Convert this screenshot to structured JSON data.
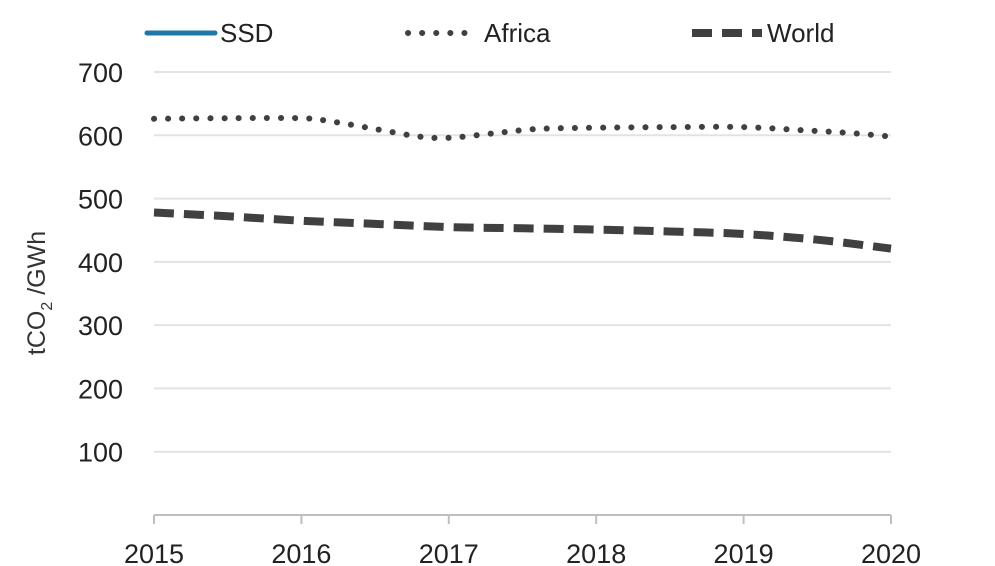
{
  "chart_data": {
    "type": "line",
    "title": "",
    "xlabel": "",
    "ylabel": "tCO2 /GWh",
    "ylabel_parts": {
      "pre": "tCO",
      "sub": "2",
      "post": " /GWh"
    },
    "categories": [
      "2015",
      "2016",
      "2017",
      "2018",
      "2019",
      "2020"
    ],
    "ylim": [
      0,
      700
    ],
    "yticks": [
      100,
      200,
      300,
      400,
      500,
      600,
      700
    ],
    "grid": true,
    "legend_position": "top",
    "series": [
      {
        "name": "SSD",
        "style": "solid",
        "color": "#1f77a9",
        "x": [],
        "values": []
      },
      {
        "name": "Africa",
        "style": "dotted",
        "color": "#404040",
        "x": [
          2015,
          2015.5,
          2016,
          2016.2,
          2016.5,
          2016.8,
          2017,
          2017.3,
          2017.6,
          2018,
          2018.5,
          2019,
          2019.4,
          2019.7,
          2020
        ],
        "values": [
          626,
          627,
          627,
          622,
          610,
          598,
          596,
          603,
          610,
          612,
          613,
          613,
          608,
          604,
          598
        ]
      },
      {
        "name": "World",
        "style": "dashed",
        "color": "#404040",
        "x": [
          2015,
          2015.5,
          2016,
          2016.5,
          2017,
          2017.5,
          2018,
          2018.5,
          2019,
          2019.5,
          2020
        ],
        "values": [
          478,
          472,
          465,
          460,
          455,
          453,
          451,
          448,
          444,
          435,
          421
        ]
      }
    ]
  }
}
